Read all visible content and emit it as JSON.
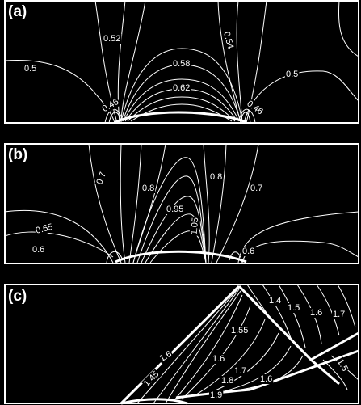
{
  "panels": [
    {
      "letter": "(a)",
      "contour_labels": [
        "0.52",
        "0.54",
        "0.5",
        "0.58",
        "0.5",
        "0.62",
        "0.46",
        "0.46"
      ]
    },
    {
      "letter": "(b)",
      "contour_labels": [
        "0.7",
        "0.8",
        "0.8",
        "0.7",
        "0.95",
        "1.05",
        "0.65",
        "0.6",
        "0.6"
      ]
    },
    {
      "letter": "(c)",
      "contour_labels": [
        "1.4",
        "1.5",
        "1.6",
        "1.7",
        "1.55",
        "1.6",
        "1.45",
        "1.6",
        "1.7",
        "1.8",
        "1.6",
        "1.9",
        "1.5"
      ]
    }
  ]
}
